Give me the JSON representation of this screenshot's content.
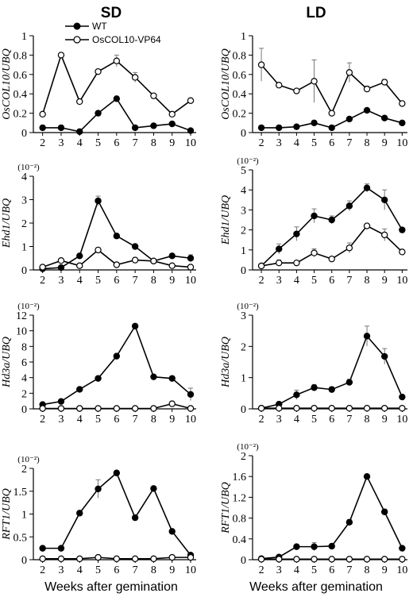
{
  "columns": [
    "SD",
    "LD"
  ],
  "xlabel": "Weeks after gemination",
  "legend": [
    {
      "label": "WT",
      "marker": "filled"
    },
    {
      "label": "OsCOL10-VP64",
      "marker": "open"
    }
  ],
  "colors": {
    "line": "#000000",
    "open_fill": "#ffffff",
    "grid": "none"
  },
  "chart_data": [
    {
      "type": "line",
      "title": "SD",
      "ylabel": "OsCOL10/UBQ",
      "multiplier": "",
      "x": [
        2,
        3,
        4,
        5,
        6,
        7,
        8,
        9,
        10
      ],
      "ylim": [
        0,
        1
      ],
      "yticks": [
        "0",
        "0.2",
        "0.4",
        "0.6",
        "0.8",
        "1"
      ],
      "ytick_values": [
        0,
        0.2,
        0.4,
        0.6,
        0.8,
        1
      ],
      "series": [
        {
          "name": "WT",
          "marker": "filled",
          "values": [
            0.05,
            0.05,
            0.01,
            0.2,
            0.35,
            0.05,
            0.07,
            0.09,
            0.02
          ],
          "errors": [
            0,
            0,
            0,
            0,
            0,
            0,
            0,
            0,
            0
          ]
        },
        {
          "name": "OsCOL10-VP64",
          "marker": "open",
          "values": [
            0.19,
            0.8,
            0.32,
            0.63,
            0.74,
            0.57,
            0.38,
            0.19,
            0.33
          ],
          "errors": [
            0,
            0,
            0,
            0,
            0.06,
            0.05,
            0,
            0,
            0
          ]
        }
      ]
    },
    {
      "type": "line",
      "title": "LD",
      "ylabel": "OsCOL10/UBQ",
      "multiplier": "",
      "x": [
        2,
        3,
        4,
        5,
        6,
        7,
        8,
        9,
        10
      ],
      "ylim": [
        0,
        1
      ],
      "yticks": [
        "0",
        "0.2",
        "0.4",
        "0.6",
        "0.8",
        "1"
      ],
      "ytick_values": [
        0,
        0.2,
        0.4,
        0.6,
        0.8,
        1
      ],
      "series": [
        {
          "name": "WT",
          "marker": "filled",
          "values": [
            0.05,
            0.05,
            0.06,
            0.1,
            0.05,
            0.14,
            0.23,
            0.15,
            0.1
          ],
          "errors": [
            0,
            0,
            0,
            0,
            0,
            0,
            0,
            0,
            0
          ]
        },
        {
          "name": "OsCOL10-VP64",
          "marker": "open",
          "values": [
            0.7,
            0.49,
            0.43,
            0.53,
            0.2,
            0.62,
            0.45,
            0.52,
            0.3
          ],
          "errors": [
            0.17,
            0,
            0,
            0.22,
            0,
            0.1,
            0.03,
            0.03,
            0
          ]
        }
      ]
    },
    {
      "type": "line",
      "ylabel": "Ehd1/UBQ",
      "multiplier": "(10⁻²)",
      "x": [
        2,
        3,
        4,
        5,
        6,
        7,
        8,
        9,
        10
      ],
      "ylim": [
        0,
        4
      ],
      "yticks": [
        "0",
        "1",
        "2",
        "3",
        "4"
      ],
      "ytick_values": [
        0,
        1,
        2,
        3,
        4
      ],
      "series": [
        {
          "name": "WT",
          "marker": "filled",
          "values": [
            0.05,
            0.1,
            0.6,
            2.95,
            1.45,
            1.0,
            0.38,
            0.6,
            0.5
          ],
          "errors": [
            0,
            0,
            0,
            0.2,
            0,
            0,
            0,
            0,
            0.15
          ]
        },
        {
          "name": "OsCOL10-VP64",
          "marker": "open",
          "values": [
            0.12,
            0.4,
            0.18,
            0.85,
            0.22,
            0.42,
            0.38,
            0.18,
            0.12
          ],
          "errors": [
            0,
            0,
            0,
            0.1,
            0,
            0,
            0,
            0,
            0
          ]
        }
      ]
    },
    {
      "type": "line",
      "ylabel": "Ehd1/UBQ",
      "multiplier": "(10⁻²)",
      "x": [
        2,
        3,
        4,
        5,
        6,
        7,
        8,
        9,
        10
      ],
      "ylim": [
        0,
        5
      ],
      "yticks": [
        "0",
        "1",
        "2",
        "3",
        "4",
        "5"
      ],
      "ytick_values": [
        0,
        1,
        2,
        3,
        4,
        5
      ],
      "series": [
        {
          "name": "WT",
          "marker": "filled",
          "values": [
            0.2,
            1.05,
            1.8,
            2.7,
            2.5,
            3.2,
            4.1,
            3.5,
            2.0
          ],
          "errors": [
            0,
            0.25,
            0.35,
            0.35,
            0.2,
            0.25,
            0.2,
            0.5,
            0
          ]
        },
        {
          "name": "OsCOL10-VP64",
          "marker": "open",
          "values": [
            0.2,
            0.35,
            0.35,
            0.85,
            0.55,
            1.1,
            2.2,
            1.75,
            0.9
          ],
          "errors": [
            0,
            0.15,
            0,
            0.2,
            0,
            0.25,
            0,
            0.3,
            0
          ]
        }
      ]
    },
    {
      "type": "line",
      "ylabel": "Hd3a/UBQ",
      "multiplier": "(10⁻²)",
      "x": [
        2,
        3,
        4,
        5,
        6,
        7,
        8,
        9,
        10
      ],
      "ylim": [
        0,
        12
      ],
      "yticks": [
        "0",
        "2",
        "4",
        "6",
        "8",
        "10",
        "12"
      ],
      "ytick_values": [
        0,
        2,
        4,
        6,
        8,
        10,
        12
      ],
      "series": [
        {
          "name": "WT",
          "marker": "filled",
          "values": [
            0.55,
            0.95,
            2.5,
            3.9,
            6.75,
            10.6,
            4.1,
            3.9,
            1.85
          ],
          "errors": [
            0,
            0,
            0,
            0,
            0,
            0,
            0,
            0,
            0.8
          ]
        },
        {
          "name": "OsCOL10-VP64",
          "marker": "open",
          "values": [
            0.05,
            0.05,
            0.05,
            0.05,
            0.05,
            0.05,
            0.05,
            0.65,
            0.05
          ],
          "errors": [
            0,
            0,
            0,
            0,
            0,
            0,
            0,
            0,
            0
          ]
        }
      ]
    },
    {
      "type": "line",
      "ylabel": "Hd3a/UBQ",
      "multiplier": "(10⁻²)",
      "x": [
        2,
        3,
        4,
        5,
        6,
        7,
        8,
        9,
        10
      ],
      "ylim": [
        0,
        3
      ],
      "yticks": [
        "0",
        "1",
        "2",
        "3"
      ],
      "ytick_values": [
        0,
        1,
        2,
        3
      ],
      "series": [
        {
          "name": "WT",
          "marker": "filled",
          "values": [
            0.02,
            0.15,
            0.45,
            0.68,
            0.62,
            0.85,
            2.33,
            1.68,
            0.38
          ],
          "errors": [
            0,
            0,
            0.15,
            0.1,
            0.08,
            0.1,
            0.32,
            0.25,
            0
          ]
        },
        {
          "name": "OsCOL10-VP64",
          "marker": "open",
          "values": [
            0.02,
            0.02,
            0.02,
            0.02,
            0.02,
            0.02,
            0.02,
            0.02,
            0.02
          ],
          "errors": [
            0,
            0,
            0,
            0,
            0,
            0,
            0,
            0,
            0
          ]
        }
      ]
    },
    {
      "type": "line",
      "ylabel": "RFT1/UBQ",
      "multiplier": "(10⁻²)",
      "x": [
        2,
        3,
        4,
        5,
        6,
        7,
        8,
        9,
        10
      ],
      "ylim": [
        0,
        2
      ],
      "yticks": [
        "0",
        "0.5",
        "1",
        "1.5",
        "2"
      ],
      "ytick_values": [
        0,
        0.5,
        1,
        1.5,
        2
      ],
      "series": [
        {
          "name": "WT",
          "marker": "filled",
          "values": [
            0.25,
            0.25,
            1.02,
            1.55,
            1.9,
            0.92,
            1.56,
            0.62,
            0.1
          ],
          "errors": [
            0,
            0,
            0,
            0.2,
            0,
            0,
            0,
            0,
            0
          ]
        },
        {
          "name": "OsCOL10-VP64",
          "marker": "open",
          "values": [
            0.02,
            0.02,
            0.02,
            0.05,
            0.02,
            0.02,
            0.02,
            0.05,
            0.05
          ],
          "errors": [
            0,
            0,
            0,
            0,
            0,
            0,
            0,
            0,
            0
          ]
        }
      ]
    },
    {
      "type": "line",
      "ylabel": "RFT1/UBQ",
      "multiplier": "(10⁻²)",
      "x": [
        2,
        3,
        4,
        5,
        6,
        7,
        8,
        9,
        10
      ],
      "ylim": [
        0,
        2
      ],
      "yticks": [
        "0",
        "0.4",
        "0.8",
        "1.2",
        "1.6",
        "2"
      ],
      "ytick_values": [
        0,
        0.4,
        0.8,
        1.2,
        1.6,
        2
      ],
      "series": [
        {
          "name": "WT",
          "marker": "filled",
          "values": [
            0.02,
            0.05,
            0.25,
            0.25,
            0.26,
            0.72,
            1.6,
            0.92,
            0.22
          ],
          "errors": [
            0,
            0,
            0,
            0.08,
            0,
            0.05,
            0,
            0.05,
            0
          ]
        },
        {
          "name": "OsCOL10-VP64",
          "marker": "open",
          "values": [
            0.01,
            0.01,
            0.01,
            0.01,
            0.01,
            0.01,
            0.01,
            0.01,
            0.01
          ],
          "errors": [
            0,
            0,
            0,
            0,
            0,
            0,
            0,
            0,
            0
          ]
        }
      ]
    }
  ]
}
